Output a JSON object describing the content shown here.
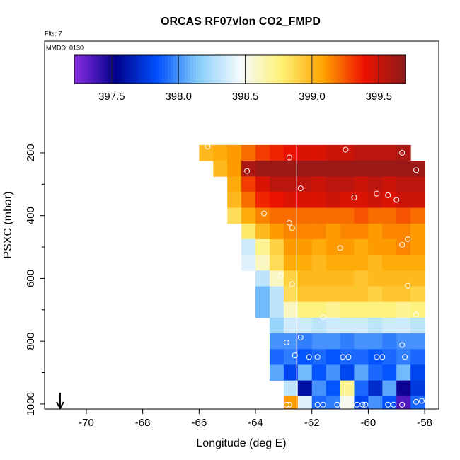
{
  "chart_data": {
    "type": "heatmap",
    "title": "ORCAS RF07vlon CO2_FMPD",
    "subtitle": "Flts: 7",
    "annotation": "MMDD: 0130",
    "x_label": "Longitude (deg E)",
    "y_label": "PSXC (mbar)",
    "xlim": [
      -71.48,
      -57.5
    ],
    "xticks": [
      -70,
      -68,
      -66,
      -64,
      -62,
      -60,
      -58
    ],
    "ylim": [
      1016,
      -156
    ],
    "yticks": [
      200,
      400,
      600,
      800,
      1000
    ],
    "yminor": [
      300,
      500,
      700,
      900
    ],
    "x": [
      -65.75,
      -65.25,
      -64.75,
      -64.25,
      -63.75,
      -63.25,
      -62.75,
      -62.25,
      -61.75,
      -61.25,
      -60.75,
      -60.25,
      -59.75,
      -59.25,
      -58.75,
      -58.25
    ],
    "y": [
      200,
      250,
      300,
      350,
      400,
      450,
      500,
      550,
      600,
      650,
      700,
      750,
      800,
      850,
      900,
      950,
      1000
    ],
    "z": [
      [
        399.0,
        399.05,
        399.1,
        399.2,
        399.3,
        399.35,
        399.4,
        399.45,
        399.45,
        399.5,
        399.5,
        399.55,
        399.55,
        399.55,
        399.6,
        null
      ],
      [
        null,
        399.0,
        399.1,
        399.6,
        399.65,
        399.65,
        399.65,
        399.65,
        399.65,
        399.65,
        399.65,
        399.65,
        399.65,
        399.65,
        399.65,
        399.65
      ],
      [
        null,
        null,
        399.05,
        399.3,
        399.45,
        399.55,
        399.55,
        399.55,
        399.5,
        399.55,
        399.55,
        399.5,
        399.55,
        399.5,
        399.55,
        399.55
      ],
      [
        null,
        null,
        399.0,
        399.2,
        399.35,
        399.4,
        399.45,
        399.45,
        399.45,
        399.5,
        399.45,
        399.45,
        399.5,
        399.45,
        399.5,
        399.5
      ],
      [
        null,
        null,
        398.85,
        399.05,
        399.15,
        399.2,
        399.2,
        399.2,
        399.2,
        399.2,
        399.2,
        399.25,
        399.2,
        399.2,
        399.25,
        399.2
      ],
      [
        null,
        null,
        null,
        398.8,
        399.0,
        399.1,
        399.15,
        399.15,
        399.15,
        399.1,
        399.15,
        399.15,
        399.1,
        399.15,
        399.15,
        399.1
      ],
      [
        null,
        null,
        null,
        398.35,
        398.7,
        398.9,
        399.1,
        399.1,
        399.05,
        399.1,
        399.1,
        399.05,
        399.1,
        399.1,
        399.15,
        399.1
      ],
      [
        null,
        null,
        null,
        398.4,
        398.6,
        398.85,
        399.05,
        399.05,
        399.0,
        399.05,
        399.05,
        399.05,
        399.0,
        399.05,
        399.05,
        399.05
      ],
      [
        null,
        null,
        null,
        null,
        398.3,
        398.6,
        398.9,
        399.0,
        399.0,
        399.0,
        399.0,
        398.95,
        399.0,
        399.0,
        399.0,
        399.0
      ],
      [
        null,
        null,
        null,
        null,
        398.1,
        398.3,
        398.85,
        398.95,
        398.95,
        398.95,
        398.95,
        398.95,
        398.9,
        398.95,
        398.95,
        398.9
      ],
      [
        null,
        null,
        null,
        null,
        398.1,
        398.3,
        398.6,
        398.75,
        398.75,
        398.7,
        398.75,
        398.75,
        398.75,
        398.75,
        398.7,
        398.75
      ],
      [
        null,
        null,
        null,
        null,
        null,
        398.2,
        398.35,
        398.35,
        398.3,
        398.35,
        398.35,
        398.35,
        398.3,
        398.35,
        398.35,
        398.3
      ],
      [
        null,
        null,
        null,
        null,
        null,
        398.0,
        398.0,
        397.95,
        398.0,
        398.0,
        397.95,
        398.0,
        398.0,
        397.95,
        398.0,
        398.0
      ],
      [
        null,
        null,
        null,
        null,
        null,
        397.9,
        397.95,
        397.85,
        397.9,
        397.85,
        397.9,
        397.9,
        397.85,
        397.9,
        397.95,
        397.9
      ],
      [
        null,
        null,
        null,
        null,
        null,
        398.05,
        397.8,
        398.1,
        397.85,
        398.0,
        397.8,
        398.05,
        397.9,
        397.85,
        398.1,
        397.8
      ],
      [
        null,
        null,
        null,
        null,
        null,
        null,
        398.3,
        397.6,
        398.0,
        397.85,
        398.7,
        397.9,
        397.7,
        398.05,
        397.5,
        397.75
      ],
      [
        null,
        null,
        null,
        null,
        null,
        null,
        399.1,
        398.4,
        397.9,
        397.95,
        398.5,
        397.8,
        398.0,
        397.85,
        397.35,
        397.9
      ]
    ],
    "zlim": [
      397.22,
      399.7
    ],
    "colorscale": [
      "#8a2be2",
      "#00008b",
      "#0050ff",
      "#87cefa",
      "#f5fbff",
      "#fff176",
      "#ffa500",
      "#ee1100",
      "#8b1a1a"
    ],
    "cbticks": [
      397.5,
      {
        "value": 398,
        "label": "398.0"
      },
      398.5,
      {
        "value": 399,
        "label": "399.0"
      },
      399.5
    ],
    "points": {
      "lon": [
        -65.7,
        -62.8,
        -60.8,
        -58.8,
        -64.3,
        -58.3,
        -62.4,
        -60.5,
        -59.7,
        -59.3,
        -59.0,
        -63.7,
        -62.8,
        -62.7,
        -61.0,
        -58.6,
        -58.8,
        -63.1,
        -62.7,
        -58.6,
        -58.3,
        -61.6,
        -62.9,
        -62.4,
        -58.8,
        -62.6,
        -62.1,
        -61.8,
        -60.9,
        -60.7,
        -59.7,
        -59.5,
        -58.7,
        -62.9,
        -62.8,
        -61.8,
        -61.6,
        -61.1,
        -60.4,
        -60.2,
        -60.1,
        -59.3,
        -59.1,
        -58.8,
        -58.3,
        -58.1
      ],
      "psxc": [
        180,
        215,
        190,
        200,
        258,
        255,
        313,
        342,
        330,
        335,
        350,
        393,
        423,
        440,
        503,
        475,
        493,
        590,
        618,
        623,
        715,
        723,
        804,
        788,
        812,
        845,
        850,
        850,
        850,
        850,
        850,
        850,
        850,
        1002,
        1002,
        1002,
        1002,
        1002,
        1002,
        1002,
        1002,
        1002,
        1002,
        1002,
        993,
        990
      ],
      "color": "#ffffff"
    },
    "line_lon": -62.54,
    "line_color": "#ffffff",
    "arrow_lon": -70.93
  }
}
